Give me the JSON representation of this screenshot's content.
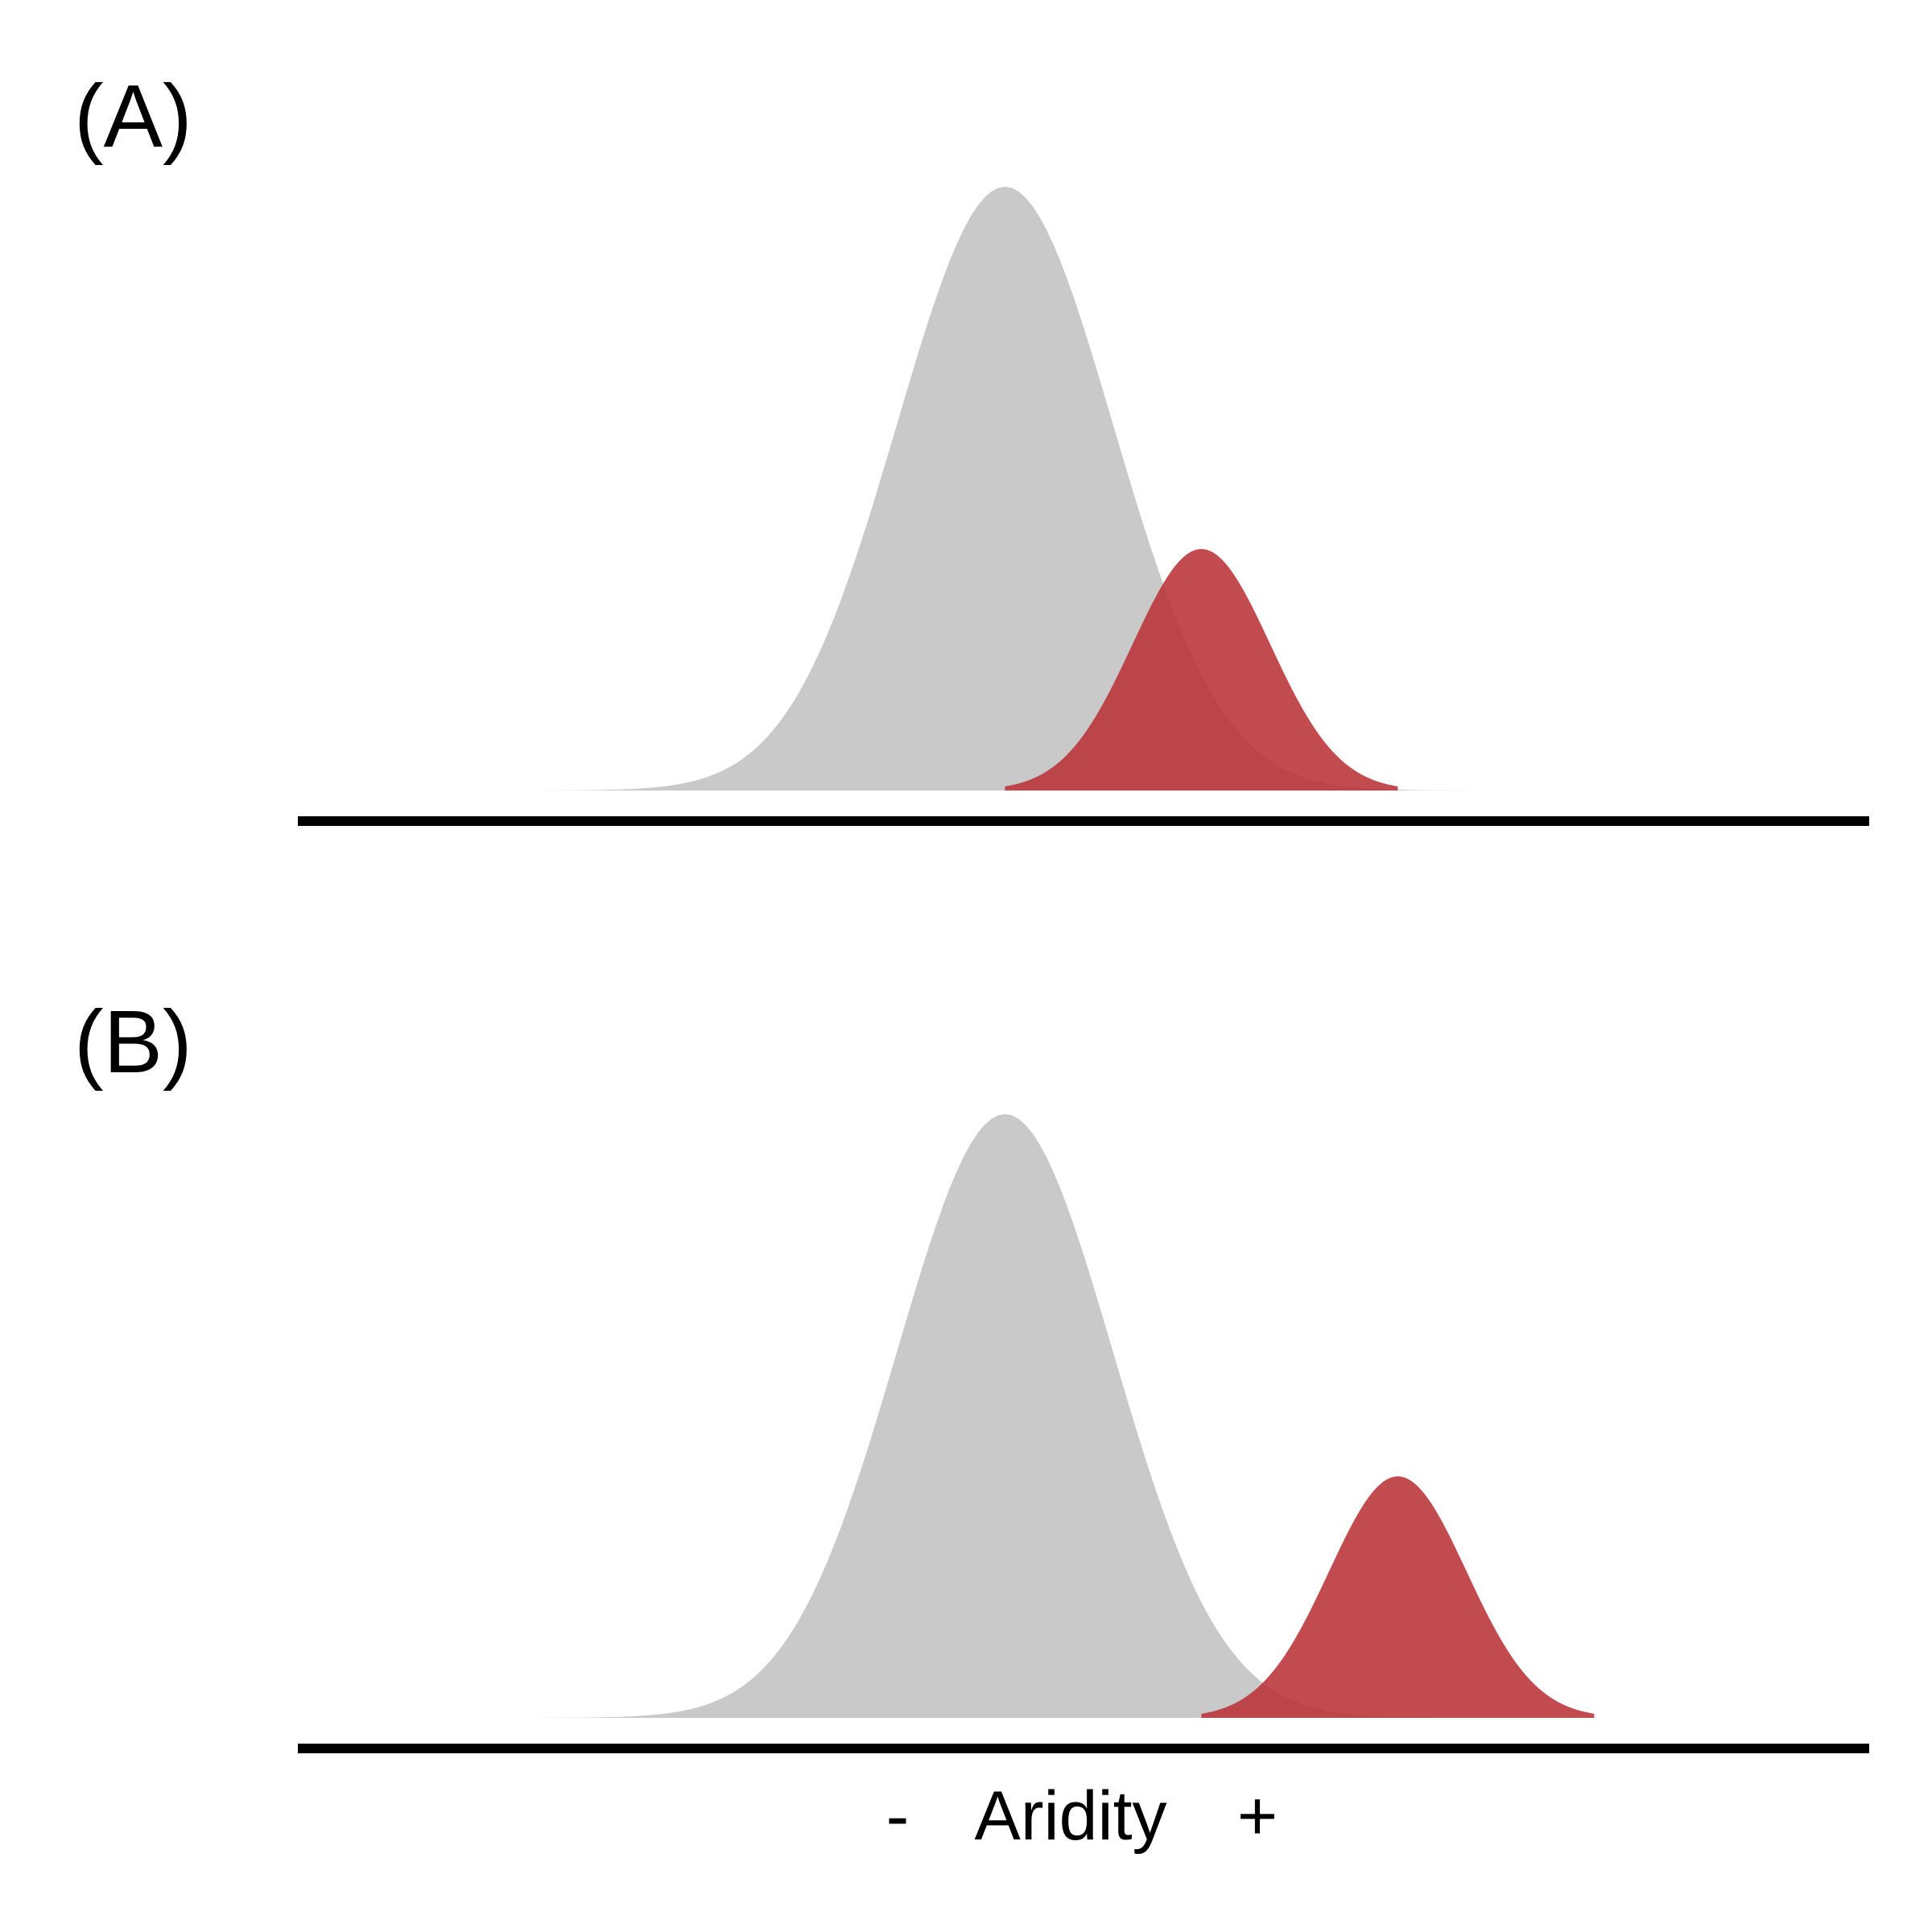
{
  "figure": {
    "background": "#ffffff"
  },
  "axis": {
    "label": "Aridity",
    "minus_label": "-",
    "plus_label": "+"
  },
  "colors": {
    "background_distribution": "#c9c9c9",
    "focal_distribution": "#b83237",
    "baseline": "#000000"
  },
  "chart_data": [
    {
      "type": "area",
      "panel_label": "(A)",
      "title": "",
      "xlabel": "Aridity",
      "ylabel": "",
      "grid": false,
      "xlim": [
        -4,
        4
      ],
      "ylim": [
        0,
        1.05
      ],
      "series": [
        {
          "distribution": "normal",
          "mean": -0.4,
          "sd": 0.55,
          "peak": 1.0,
          "x_range": [
            -3.2,
            2.4
          ],
          "color": "#c9c9c9",
          "opacity": 1.0
        },
        {
          "distribution": "normal",
          "mean": 0.6,
          "sd": 0.35,
          "peak": 0.4,
          "x_range": [
            -0.4,
            1.6
          ],
          "color": "#b83237",
          "opacity": 0.88
        }
      ]
    },
    {
      "type": "area",
      "panel_label": "(B)",
      "title": "",
      "xlabel": "Aridity",
      "ylabel": "",
      "grid": false,
      "xlim": [
        -4,
        4
      ],
      "ylim": [
        0,
        1.05
      ],
      "series": [
        {
          "distribution": "normal",
          "mean": -0.4,
          "sd": 0.55,
          "peak": 1.0,
          "x_range": [
            -3.2,
            2.4
          ],
          "color": "#c9c9c9",
          "opacity": 1.0
        },
        {
          "distribution": "normal",
          "mean": 1.6,
          "sd": 0.35,
          "peak": 0.4,
          "x_range": [
            0.6,
            2.6
          ],
          "color": "#b83237",
          "opacity": 0.88
        }
      ]
    }
  ]
}
